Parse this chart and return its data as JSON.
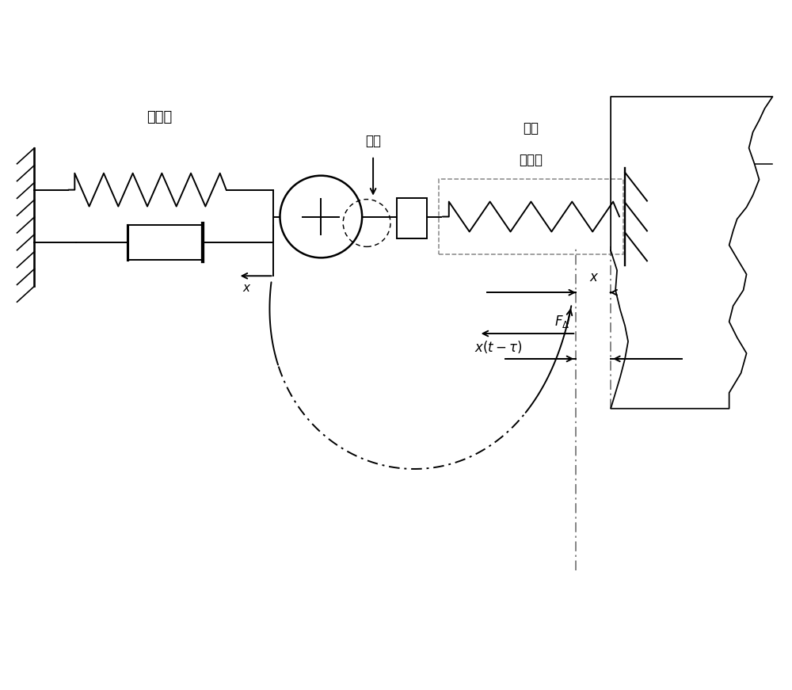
{
  "bg_color": "#ffffff",
  "line_color": "#000000",
  "gray_color": "#888888",
  "label_gongzuojian": "工作间",
  "label_qiedao": "切刀",
  "label_cizhi_1": "磁致作",
  "label_cizhi_2": "动器",
  "lw": 1.4
}
